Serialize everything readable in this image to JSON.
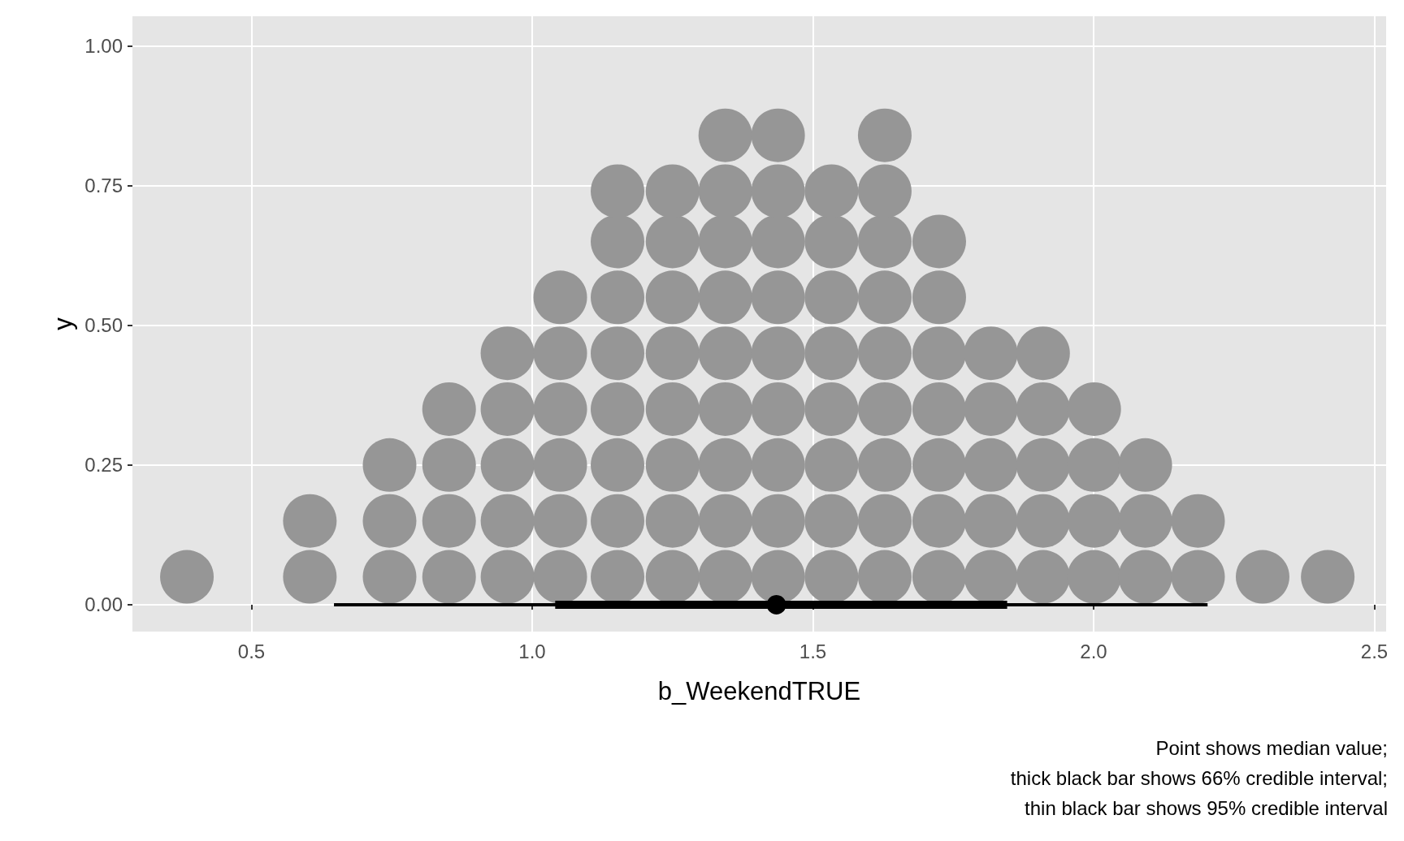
{
  "chart_data": {
    "type": "scatter",
    "xlabel": "b_WeekendTRUE",
    "ylabel": "y",
    "xlim": [
      0.288,
      2.521
    ],
    "ylim": [
      -0.048,
      1.053
    ],
    "xticks": [
      0.5,
      {
        "value": 1,
        "label": "1.0"
      },
      1.5,
      {
        "value": 2,
        "label": "2.0"
      },
      2.5
    ],
    "yticks": [
      {
        "value": 0,
        "label": "0.00"
      },
      0.25,
      {
        "value": 0.5,
        "label": "0.50"
      },
      0.75,
      {
        "value": 1,
        "label": "1.00"
      }
    ],
    "grid": true,
    "annotations": [
      "Point shows median value;\nthick black bar shows 66% credible interval;\nthin black bar shows 95% credible interval"
    ],
    "series": [
      {
        "color": "#969696",
        "x": [
          0.385,
          0.604,
          0.604,
          0.746,
          0.746,
          0.746,
          0.852,
          0.852,
          0.852,
          0.852,
          0.956,
          0.956,
          0.956,
          0.956,
          0.956,
          1.05,
          1.05,
          1.05,
          1.05,
          1.05,
          1.05,
          1.152,
          1.152,
          1.152,
          1.152,
          1.152,
          1.152,
          1.152,
          1.152,
          1.25,
          1.25,
          1.25,
          1.25,
          1.25,
          1.25,
          1.25,
          1.25,
          1.344,
          1.344,
          1.344,
          1.344,
          1.344,
          1.344,
          1.344,
          1.344,
          1.344,
          1.438,
          1.438,
          1.438,
          1.438,
          1.438,
          1.438,
          1.438,
          1.438,
          1.438,
          1.533,
          1.533,
          1.533,
          1.533,
          1.533,
          1.533,
          1.533,
          1.533,
          1.628,
          1.628,
          1.628,
          1.628,
          1.628,
          1.628,
          1.628,
          1.628,
          1.628,
          1.725,
          1.725,
          1.725,
          1.725,
          1.725,
          1.725,
          1.725,
          1.817,
          1.817,
          1.817,
          1.817,
          1.817,
          1.91,
          1.91,
          1.91,
          1.91,
          1.91,
          2.001,
          2.001,
          2.001,
          2.001,
          2.092,
          2.092,
          2.092,
          2.186,
          2.186,
          2.301,
          2.417
        ],
        "values": [
          0.05,
          0.05,
          0.15,
          0.05,
          0.15,
          0.25,
          0.05,
          0.15,
          0.25,
          0.35,
          0.05,
          0.15,
          0.25,
          0.35,
          0.45,
          0.05,
          0.15,
          0.25,
          0.35,
          0.45,
          0.55,
          0.05,
          0.15,
          0.25,
          0.35,
          0.45,
          0.55,
          0.65,
          0.74,
          0.05,
          0.15,
          0.25,
          0.35,
          0.45,
          0.55,
          0.65,
          0.74,
          0.05,
          0.15,
          0.25,
          0.35,
          0.45,
          0.55,
          0.65,
          0.74,
          0.84,
          0.05,
          0.15,
          0.25,
          0.35,
          0.45,
          0.55,
          0.65,
          0.74,
          0.84,
          0.05,
          0.15,
          0.25,
          0.35,
          0.45,
          0.55,
          0.65,
          0.74,
          0.05,
          0.15,
          0.25,
          0.35,
          0.45,
          0.55,
          0.65,
          0.74,
          0.84,
          0.05,
          0.15,
          0.25,
          0.35,
          0.45,
          0.55,
          0.65,
          0.05,
          0.15,
          0.25,
          0.35,
          0.45,
          0.05,
          0.15,
          0.25,
          0.35,
          0.45,
          0.05,
          0.15,
          0.25,
          0.35,
          0.05,
          0.15,
          0.25,
          0.05,
          0.15,
          0.05,
          0.05
        ]
      },
      {
        "type": "line",
        "color": "#000000",
        "x": [
          0.647,
          2.203
        ],
        "values": [
          0,
          0
        ]
      },
      {
        "type": "line",
        "color": "#000000",
        "x": [
          1.041,
          1.846
        ],
        "values": [
          0,
          0
        ]
      },
      {
        "color": "#000000",
        "x": [
          1.435
        ],
        "values": [
          0
        ]
      }
    ]
  }
}
